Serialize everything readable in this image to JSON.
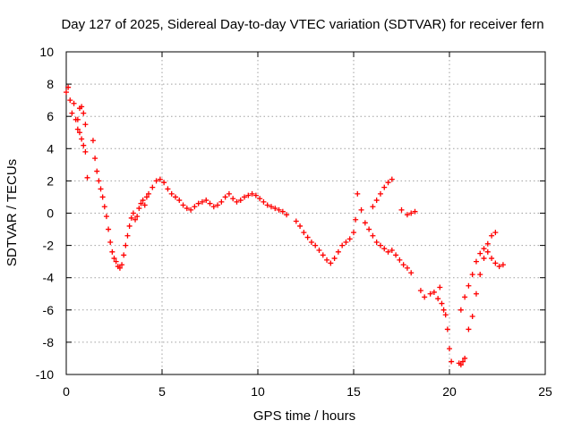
{
  "chart_data": {
    "type": "scatter",
    "title": "Day 127 of 2025, Sidereal Day-to-day VTEC variation (SDTVAR) for receiver fern",
    "xlabel": "GPS time / hours",
    "ylabel": "SDTVAR / TECUs",
    "xlim": [
      0,
      25
    ],
    "ylim": [
      -10,
      10
    ],
    "xticks": [
      0,
      5,
      10,
      15,
      20,
      25
    ],
    "yticks": [
      -10,
      -8,
      -6,
      -4,
      -2,
      0,
      2,
      4,
      6,
      8,
      10
    ],
    "grid": true,
    "marker": "+",
    "series_color": "#ff0000",
    "series": [
      {
        "name": "SDTVAR",
        "x": [
          0.0,
          0.1,
          0.2,
          0.3,
          0.4,
          0.5,
          0.6,
          0.7,
          0.8,
          0.9,
          1.0,
          0.6,
          0.7,
          0.8,
          0.9,
          1.0,
          1.1,
          1.4,
          1.5,
          1.6,
          1.7,
          1.8,
          1.9,
          2.0,
          2.1,
          2.2,
          2.3,
          2.4,
          2.5,
          2.6,
          2.7,
          2.8,
          2.9,
          3.0,
          3.1,
          3.2,
          3.3,
          3.4,
          3.5,
          3.6,
          3.7,
          3.8,
          3.9,
          4.0,
          4.1,
          4.2,
          4.3,
          4.5,
          4.7,
          4.9,
          5.1,
          5.3,
          5.5,
          5.7,
          5.9,
          6.1,
          6.3,
          6.5,
          6.7,
          6.9,
          7.1,
          7.3,
          7.5,
          7.7,
          7.9,
          8.1,
          8.3,
          8.5,
          8.7,
          8.9,
          9.1,
          9.3,
          9.5,
          9.7,
          9.9,
          10.1,
          10.3,
          10.5,
          10.7,
          10.9,
          11.1,
          11.3,
          11.5,
          12.0,
          12.2,
          12.4,
          12.6,
          12.8,
          13.0,
          13.2,
          13.4,
          13.6,
          13.8,
          14.0,
          14.2,
          14.4,
          14.6,
          14.8,
          15.0,
          15.1,
          15.2,
          15.4,
          15.6,
          15.8,
          16.0,
          16.2,
          16.4,
          16.6,
          16.8,
          17.0,
          17.2,
          17.4,
          17.6,
          17.8,
          18.0,
          16.0,
          16.2,
          16.4,
          16.6,
          16.8,
          17.0,
          17.5,
          17.8,
          18.0,
          18.2,
          18.5,
          18.7,
          19.0,
          19.2,
          19.4,
          19.5,
          19.6,
          19.7,
          19.8,
          19.9,
          20.0,
          20.1,
          20.5,
          20.6,
          20.7,
          20.8,
          20.6,
          20.8,
          21.0,
          21.2,
          21.4,
          21.6,
          21.8,
          22.0,
          22.2,
          22.4,
          22.6,
          22.8,
          21.0,
          21.2,
          21.4,
          21.6,
          21.8,
          22.0,
          22.2,
          22.4
        ],
        "y": [
          7.5,
          7.8,
          7.0,
          6.2,
          6.8,
          5.8,
          5.2,
          6.5,
          6.6,
          6.2,
          5.5,
          5.8,
          5.0,
          4.6,
          4.2,
          3.8,
          2.2,
          4.5,
          3.4,
          2.6,
          2.0,
          1.5,
          1.0,
          0.4,
          -0.2,
          -1.0,
          -1.8,
          -2.4,
          -2.8,
          -3.0,
          -3.3,
          -3.4,
          -3.2,
          -2.6,
          -2.0,
          -1.4,
          -0.8,
          -0.3,
          0.0,
          -0.4,
          -0.2,
          0.3,
          0.6,
          0.8,
          0.5,
          1.0,
          1.2,
          1.6,
          2.0,
          2.1,
          1.9,
          1.5,
          1.2,
          1.0,
          0.8,
          0.5,
          0.3,
          0.2,
          0.4,
          0.6,
          0.7,
          0.8,
          0.6,
          0.4,
          0.5,
          0.7,
          1.0,
          1.2,
          0.9,
          0.7,
          0.8,
          1.0,
          1.1,
          1.2,
          1.1,
          0.9,
          0.7,
          0.5,
          0.4,
          0.3,
          0.2,
          0.1,
          -0.1,
          -0.5,
          -0.8,
          -1.2,
          -1.5,
          -1.8,
          -2.0,
          -2.3,
          -2.6,
          -2.9,
          -3.1,
          -2.8,
          -2.4,
          -2.0,
          -1.8,
          -1.6,
          -1.2,
          -0.4,
          1.2,
          0.2,
          -0.6,
          -1.0,
          -1.4,
          -1.8,
          -2.0,
          -2.2,
          -2.4,
          -2.3,
          -2.6,
          -2.9,
          -3.2,
          -3.4,
          -3.7,
          0.4,
          0.8,
          1.2,
          1.6,
          1.9,
          2.1,
          0.2,
          -0.1,
          0.0,
          0.1,
          -4.8,
          -5.2,
          -5.0,
          -4.9,
          -5.3,
          -4.6,
          -5.6,
          -6.0,
          -6.3,
          -7.2,
          -8.4,
          -9.2,
          -9.3,
          -9.4,
          -9.2,
          -9.0,
          -6.0,
          -5.2,
          -4.5,
          -3.8,
          -3.0,
          -2.5,
          -2.2,
          -2.4,
          -2.8,
          -3.1,
          -3.3,
          -3.2,
          -7.2,
          -6.4,
          -5.0,
          -3.8,
          -2.8,
          -1.9,
          -1.4,
          -1.2
        ]
      }
    ]
  }
}
